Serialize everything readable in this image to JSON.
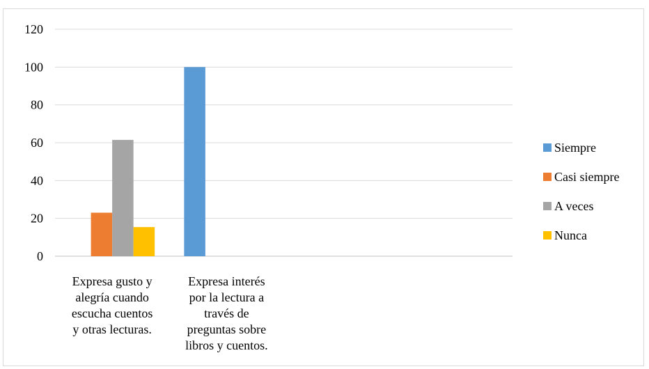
{
  "chart_data": {
    "type": "bar",
    "title": "",
    "xlabel": "",
    "ylabel": "",
    "ylim": [
      0,
      120
    ],
    "yticks": [
      0,
      20,
      40,
      60,
      80,
      100,
      120
    ],
    "grid": true,
    "legend_position": "right",
    "categories": [
      [
        "Expresa gusto y",
        "alegría cuando",
        "escucha cuentos",
        "y otras lecturas."
      ],
      [
        "Expresa interés",
        "por la lectura a",
        "través de",
        "preguntas sobre",
        "libros y cuentos."
      ],
      [],
      []
    ],
    "series": [
      {
        "name": "Siempre",
        "color": "#5b9bd5",
        "values": [
          0,
          100,
          0,
          0
        ]
      },
      {
        "name": "Casi siempre",
        "color": "#ed7d31",
        "values": [
          23,
          0,
          0,
          0
        ]
      },
      {
        "name": "A veces",
        "color": "#a5a5a5",
        "values": [
          61.5,
          0,
          0,
          0
        ]
      },
      {
        "name": "Nunca",
        "color": "#ffc000",
        "values": [
          15.4,
          0,
          0,
          0
        ]
      }
    ]
  }
}
